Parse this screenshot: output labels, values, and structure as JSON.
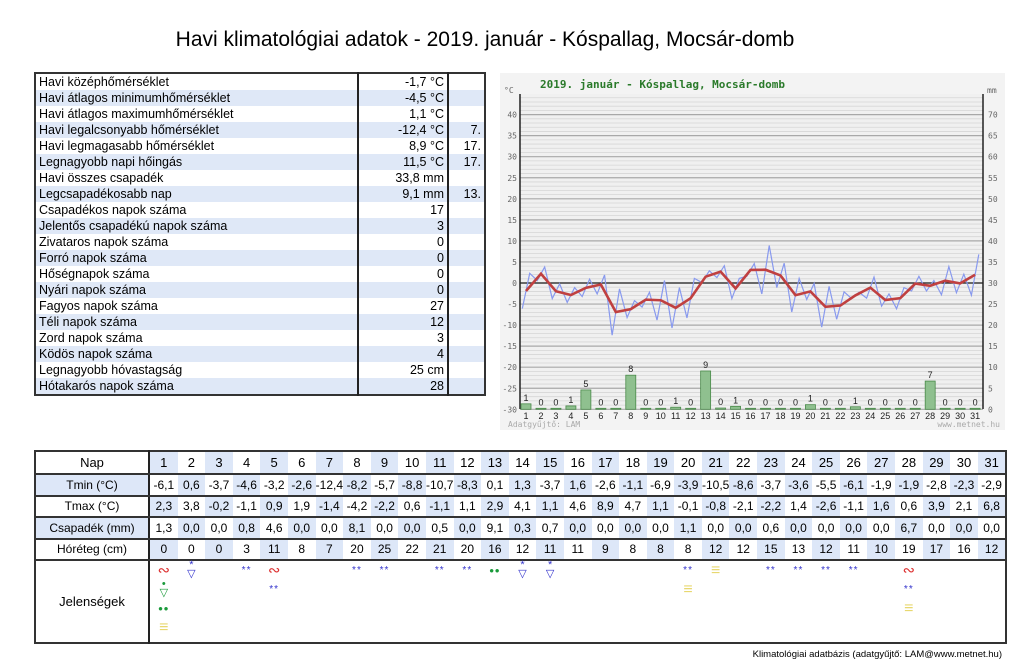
{
  "title": "Havi klimatológiai adatok - 2019. január - Kóspallag, Mocsár-domb",
  "summary": [
    {
      "label": "Havi középhőmérséklet",
      "value": "-1,7 °C",
      "day": ""
    },
    {
      "label": "Havi átlagos minimumhőmérséklet",
      "value": "-4,5 °C",
      "day": ""
    },
    {
      "label": "Havi átlagos maximumhőmérséklet",
      "value": "1,1 °C",
      "day": ""
    },
    {
      "label": "Havi legalcsonyabb hőmérséklet",
      "value": "-12,4 °C",
      "day": "7."
    },
    {
      "label": "Havi legmagasabb hőmérséklet",
      "value": "8,9 °C",
      "day": "17."
    },
    {
      "label": "Legnagyobb napi hőingás",
      "value": "11,5 °C",
      "day": "17."
    },
    {
      "label": "Havi összes csapadék",
      "value": "33,8 mm",
      "day": ""
    },
    {
      "label": "Legcsapadékosabb nap",
      "value": "9,1 mm",
      "day": "13."
    },
    {
      "label": "Csapadékos napok száma",
      "value": "17",
      "day": ""
    },
    {
      "label": "Jelentős csapadékú napok száma",
      "value": "3",
      "day": ""
    },
    {
      "label": "Zivataros napok száma",
      "value": "0",
      "day": ""
    },
    {
      "label": "Forró napok száma",
      "value": "0",
      "day": ""
    },
    {
      "label": "Hőségnapok száma",
      "value": "0",
      "day": ""
    },
    {
      "label": "Nyári napok száma",
      "value": "0",
      "day": ""
    },
    {
      "label": "Fagyos napok száma",
      "value": "27",
      "day": ""
    },
    {
      "label": "Téli napok száma",
      "value": "12",
      "day": ""
    },
    {
      "label": "Zord napok száma",
      "value": "3",
      "day": ""
    },
    {
      "label": "Ködös napok száma",
      "value": "4",
      "day": ""
    },
    {
      "label": "Legnagyobb hóvastagság",
      "value": "25 cm",
      "day": ""
    },
    {
      "label": "Hótakarós napok száma",
      "value": "28",
      "day": ""
    }
  ],
  "chart_data": {
    "type": "line+bar",
    "title": "2019. január - Kóspallag, Mocsár-domb",
    "y_left_unit": "°C",
    "y_right_unit": "mm",
    "ylim_left": [
      -30,
      45
    ],
    "ylim_right": [
      0,
      75
    ],
    "yticks_left": [
      40,
      35,
      30,
      25,
      20,
      15,
      10,
      5,
      0,
      -5,
      -10,
      -15,
      -20,
      -25,
      -30
    ],
    "yticks_right": [
      70,
      65,
      60,
      55,
      50,
      45,
      40,
      35,
      30,
      25,
      20,
      15,
      10,
      5,
      0
    ],
    "x": [
      1,
      2,
      3,
      4,
      5,
      6,
      7,
      8,
      9,
      10,
      11,
      12,
      13,
      14,
      15,
      16,
      17,
      18,
      19,
      20,
      21,
      22,
      23,
      24,
      25,
      26,
      27,
      28,
      29,
      30,
      31
    ],
    "series": [
      {
        "type": "line",
        "color": "#8899ee",
        "tmin": [
          -6.1,
          0.6,
          -3.7,
          -4.6,
          -3.2,
          -2.6,
          -12.4,
          -8.2,
          -5.7,
          -8.8,
          -10.7,
          -8.3,
          0.1,
          1.3,
          -3.7,
          1.6,
          -2.6,
          -1.1,
          -6.9,
          -3.9,
          -10.5,
          -8.6,
          -3.7,
          -3.6,
          -5.5,
          -6.1,
          -1.9,
          -1.9,
          -2.8,
          -2.3,
          -2.9
        ],
        "tmax": [
          2.3,
          3.8,
          -0.2,
          -1.1,
          0.9,
          1.9,
          -1.4,
          -4.2,
          -2.2,
          0.6,
          -1.1,
          1.1,
          2.9,
          4.1,
          1.1,
          4.6,
          8.9,
          4.7,
          1.1,
          -0.1,
          -0.8,
          -2.1,
          -2.2,
          1.4,
          -2.6,
          -1.1,
          1.6,
          0.6,
          3.9,
          2.1,
          6.8
        ]
      },
      {
        "type": "line",
        "color": "#c04040",
        "values": [
          -1.9,
          2.2,
          -1.95,
          -2.85,
          -1.15,
          -0.35,
          -6.9,
          -6.2,
          -3.95,
          -4.1,
          -5.9,
          -3.6,
          1.5,
          2.7,
          -1.3,
          3.1,
          3.15,
          1.8,
          -2.9,
          -2.0,
          -5.65,
          -5.35,
          -2.95,
          -1.1,
          -4.05,
          -3.6,
          -0.15,
          -0.65,
          0.55,
          -0.1,
          1.95
        ]
      },
      {
        "type": "bar",
        "color": "#8fc08f",
        "values": [
          1.3,
          0,
          0,
          0.8,
          4.6,
          0,
          0,
          8.1,
          0,
          0,
          0.5,
          0,
          9.1,
          0.3,
          0.7,
          0,
          0,
          0,
          0,
          1.1,
          0,
          0,
          0.6,
          0,
          0,
          0,
          0,
          6.7,
          0,
          0,
          0
        ],
        "labels": [
          "1",
          "0",
          "0",
          "1",
          "5",
          "0",
          "0",
          "8",
          "0",
          "0",
          "1",
          "0",
          "9",
          "0",
          "1",
          "0",
          "0",
          "0",
          "0",
          "1",
          "0",
          "0",
          "1",
          "0",
          "0",
          "0",
          "0",
          "7",
          "0",
          "0",
          "0"
        ]
      }
    ],
    "watermark_left": "Adatgyűjtő: LAM",
    "watermark_right": "www.metnet.hu",
    "grid": true
  },
  "daily": {
    "labels": {
      "day": "Nap",
      "tmin": "Tmin (°C)",
      "tmax": "Tmax (°C)",
      "precip": "Csapadék (mm)",
      "snow": "Hóréteg (cm)",
      "phen": "Jelenségek"
    },
    "days": [
      "1",
      "2",
      "3",
      "4",
      "5",
      "6",
      "7",
      "8",
      "9",
      "10",
      "11",
      "12",
      "13",
      "14",
      "15",
      "16",
      "17",
      "18",
      "19",
      "20",
      "21",
      "22",
      "23",
      "24",
      "25",
      "26",
      "27",
      "28",
      "29",
      "30",
      "31"
    ],
    "tmin": [
      "-6,1",
      "0,6",
      "-3,7",
      "-4,6",
      "-3,2",
      "-2,6",
      "-12,4",
      "-8,2",
      "-5,7",
      "-8,8",
      "-10,7",
      "-8,3",
      "0,1",
      "1,3",
      "-3,7",
      "1,6",
      "-2,6",
      "-1,1",
      "-6,9",
      "-3,9",
      "-10,5",
      "-8,6",
      "-3,7",
      "-3,6",
      "-5,5",
      "-6,1",
      "-1,9",
      "-1,9",
      "-2,8",
      "-2,3",
      "-2,9"
    ],
    "tmax": [
      "2,3",
      "3,8",
      "-0,2",
      "-1,1",
      "0,9",
      "1,9",
      "-1,4",
      "-4,2",
      "-2,2",
      "0,6",
      "-1,1",
      "1,1",
      "2,9",
      "4,1",
      "1,1",
      "4,6",
      "8,9",
      "4,7",
      "1,1",
      "-0,1",
      "-0,8",
      "-2,1",
      "-2,2",
      "1,4",
      "-2,6",
      "-1,1",
      "1,6",
      "0,6",
      "3,9",
      "2,1",
      "6,8"
    ],
    "precip": [
      "1,3",
      "0,0",
      "0,0",
      "0,8",
      "4,6",
      "0,0",
      "0,0",
      "8,1",
      "0,0",
      "0,0",
      "0,5",
      "0,0",
      "9,1",
      "0,3",
      "0,7",
      "0,0",
      "0,0",
      "0,0",
      "0,0",
      "1,1",
      "0,0",
      "0,0",
      "0,6",
      "0,0",
      "0,0",
      "0,0",
      "0,0",
      "6,7",
      "0,0",
      "0,0",
      "0,0"
    ],
    "snow": [
      "0",
      "0",
      "0",
      "3",
      "11",
      "8",
      "7",
      "20",
      "25",
      "22",
      "21",
      "20",
      "16",
      "12",
      "11",
      "11",
      "9",
      "8",
      "8",
      "8",
      "12",
      "12",
      "15",
      "13",
      "12",
      "11",
      "10",
      "19",
      "17",
      "16",
      "12"
    ],
    "phenomena": [
      [
        "rime-icon",
        "rain-shower-icon",
        "rain-icon",
        "fog-icon"
      ],
      [
        "snow-shower-icon"
      ],
      [],
      [
        "snow-icon"
      ],
      [
        "rime-icon",
        "snow-icon"
      ],
      [],
      [],
      [
        "snow-icon"
      ],
      [
        "snow-icon"
      ],
      [],
      [
        "snow-icon"
      ],
      [
        "snow-icon"
      ],
      [
        "rain-icon"
      ],
      [
        "snow-shower-icon"
      ],
      [
        "snow-shower-icon"
      ],
      [],
      [],
      [],
      [],
      [
        "snow-icon",
        "fog-icon"
      ],
      [
        "fog-icon"
      ],
      [],
      [
        "snow-icon"
      ],
      [
        "snow-icon"
      ],
      [
        "snow-icon"
      ],
      [
        "snow-icon"
      ],
      [],
      [
        "rime-icon",
        "snow-icon",
        "fog-icon"
      ],
      [],
      [],
      []
    ]
  },
  "footer": "Klimatológiai adatbázis (adatgyűjtő: LAM@www.metnet.hu)"
}
